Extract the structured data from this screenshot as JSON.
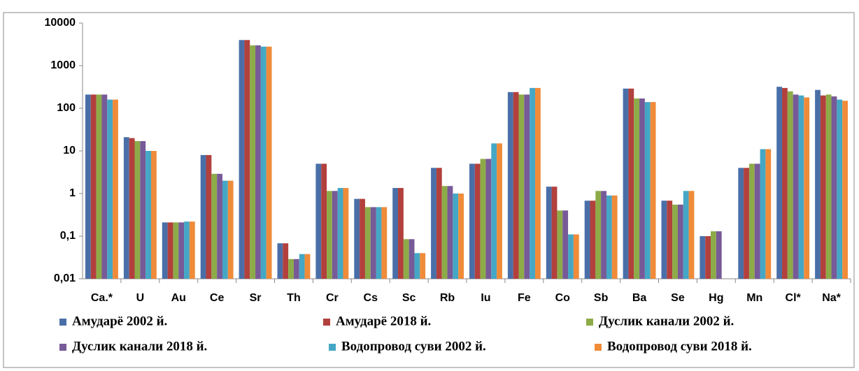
{
  "chart_data": {
    "type": "bar",
    "log_scale": true,
    "legend": "bottom",
    "categories": [
      "Ca.*",
      "U",
      "Au",
      "Ce",
      "Sr",
      "Th",
      "Cr",
      "Cs",
      "Sc",
      "Rb",
      "Iu",
      "Fe",
      "Co",
      "Sb",
      "Ba",
      "Se",
      "Hg",
      "Mn",
      "Cl*",
      "Na*"
    ],
    "ylim": [
      0.01,
      10000
    ],
    "yticks": [
      {
        "value": 0.01,
        "label": "0,01"
      },
      {
        "value": 0.1,
        "label": "0,1"
      },
      1,
      10,
      100,
      1000,
      10000
    ],
    "series": [
      {
        "name": "Амударё 2002 й.",
        "color": "#4a6fa8",
        "values": [
          210,
          21,
          0.21,
          8,
          4000,
          0.068,
          5,
          0.75,
          1.35,
          4,
          5,
          240,
          1.45,
          0.68,
          290,
          0.68,
          0.1,
          4,
          320,
          270
        ]
      },
      {
        "name": "Амударё 2018 й.",
        "color": "#b2403d",
        "values": [
          210,
          20,
          0.21,
          8,
          4000,
          0.068,
          5,
          0.75,
          1.35,
          4,
          5,
          240,
          1.45,
          0.68,
          290,
          0.68,
          0.1,
          4,
          300,
          200
        ]
      },
      {
        "name": "Дуслик канали 2002 й.",
        "color": "#8dab48",
        "values": [
          210,
          17,
          0.21,
          2.9,
          3000,
          0.029,
          1.15,
          0.48,
          0.085,
          1.5,
          6.5,
          210,
          0.4,
          1.15,
          170,
          0.55,
          0.13,
          5,
          250,
          210
        ]
      },
      {
        "name": "Дуслик канали 2018 й.",
        "color": "#775a98",
        "values": [
          210,
          17,
          0.21,
          2.9,
          3000,
          0.029,
          1.15,
          0.48,
          0.085,
          1.5,
          6.5,
          210,
          0.4,
          1.15,
          170,
          0.55,
          0.13,
          5,
          210,
          190
        ]
      },
      {
        "name": "Водопровод суви 2002 й.",
        "color": "#45a7c5",
        "values": [
          160,
          10,
          0.22,
          2,
          2800,
          0.038,
          1.35,
          0.48,
          0.04,
          1,
          15,
          300,
          0.11,
          0.9,
          140,
          1.15,
          null,
          11,
          200,
          160
        ]
      },
      {
        "name": "Водопровод суви 2018 й.",
        "color": "#ef8b39",
        "values": [
          160,
          10,
          0.22,
          2,
          2800,
          0.038,
          1.35,
          0.48,
          0.04,
          1,
          15,
          300,
          0.11,
          0.9,
          140,
          1.15,
          null,
          11,
          180,
          150
        ]
      }
    ]
  }
}
